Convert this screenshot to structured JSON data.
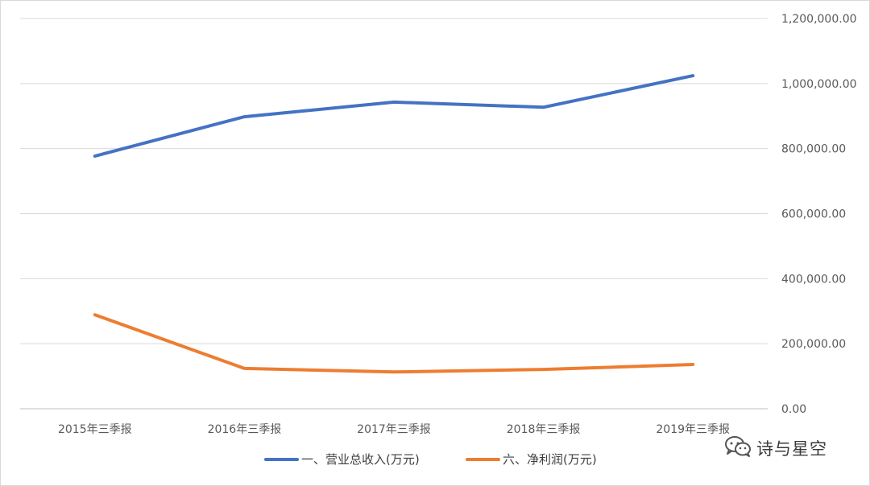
{
  "chart_data": {
    "type": "line",
    "categories": [
      "2015年三季报",
      "2016年三季报",
      "2017年三季报",
      "2018年三季报",
      "2019年三季报"
    ],
    "series": [
      {
        "name": "一、营业总收入(万元)",
        "color": "#4472c4",
        "values": [
          777000,
          898000,
          943000,
          927000,
          1024000
        ]
      },
      {
        "name": "六、净利润(万元)",
        "color": "#ed7d31",
        "values": [
          289000,
          124000,
          113000,
          121000,
          136000
        ]
      }
    ],
    "y_ticks": [
      "0.00",
      "200,000.00",
      "400,000.00",
      "600,000.00",
      "800,000.00",
      "1,000,000.00",
      "1,200,000.00"
    ],
    "ylim": [
      0,
      1200000
    ],
    "y_axis_side": "right",
    "grid": true,
    "legend_position": "bottom"
  },
  "watermark": {
    "icon": "wechat-icon",
    "text": "诗与星空"
  }
}
